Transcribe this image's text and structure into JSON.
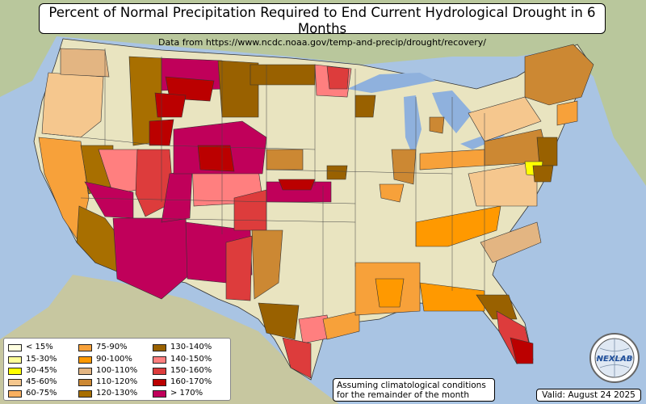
{
  "title": "Percent of Normal Precipitation Required to End Current Hydrological Drought in 6 Months",
  "subtitle": "Data from https://www.ncdc.noaa.gov/temp-and-precip/drought/recovery/",
  "legend": [
    {
      "label": "< 15%",
      "color": "#ffffe0"
    },
    {
      "label": "15-30%",
      "color": "#ffff99"
    },
    {
      "label": "30-45%",
      "color": "#ffff00"
    },
    {
      "label": "45-60%",
      "color": "#f5c78e"
    },
    {
      "label": "60-75%",
      "color": "#f9b060"
    },
    {
      "label": "75-90%",
      "color": "#f7a13a"
    },
    {
      "label": "90-100%",
      "color": "#ff9900"
    },
    {
      "label": "100-110%",
      "color": "#e3b582"
    },
    {
      "label": "110-120%",
      "color": "#cc8833"
    },
    {
      "label": "120-130%",
      "color": "#a86f00"
    },
    {
      "label": "130-140%",
      "color": "#996100"
    },
    {
      "label": "140-150%",
      "color": "#ff7f7f"
    },
    {
      "label": "150-160%",
      "color": "#dd3c3c"
    },
    {
      "label": "160-170%",
      "color": "#bb0000"
    },
    {
      "label": "> 170%",
      "color": "#c0005a"
    }
  ],
  "note": [
    "Assuming climatological conditions",
    "for the remainder of the month"
  ],
  "valid": "Valid: August 24 2025",
  "logo_text": "NEXLAB",
  "colors": {
    "ocean": "#a9c4e3",
    "land_us": "#e9e4c0",
    "land_other": "#b9c79c",
    "lakes": "#8fb1dd"
  }
}
